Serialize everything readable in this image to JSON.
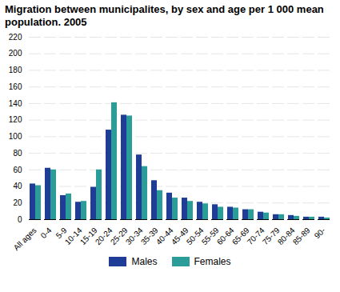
{
  "chart_data": {
    "type": "bar",
    "title": "Migration between municipalites, by sex and age per 1 000 mean population. 2005",
    "categories": [
      "All ages",
      "0-4",
      "5-9",
      "10-14",
      "15-19",
      "20-24",
      "25-29",
      "30-34",
      "35-39",
      "40-44",
      "45-49",
      "50-54",
      "55-59",
      "60-64",
      "65-69",
      "70-74",
      "75-79",
      "80-84",
      "85-89",
      "90-"
    ],
    "series": [
      {
        "name": "Males",
        "color": "#1f3d96",
        "values": [
          43,
          62,
          29,
          21,
          39,
          108,
          126,
          78,
          47,
          32,
          26,
          21,
          18,
          15,
          12,
          9,
          6,
          5,
          3,
          3
        ]
      },
      {
        "name": "Females",
        "color": "#2a9d99",
        "values": [
          41,
          60,
          31,
          22,
          60,
          141,
          125,
          64,
          35,
          26,
          22,
          19,
          15,
          14,
          12,
          8,
          6,
          4,
          3,
          2
        ]
      }
    ],
    "ylim": [
      0,
      220
    ],
    "yticks": [
      0,
      20,
      40,
      60,
      80,
      100,
      120,
      140,
      160,
      180,
      200,
      220
    ],
    "grid": true,
    "legend": "bottom"
  }
}
